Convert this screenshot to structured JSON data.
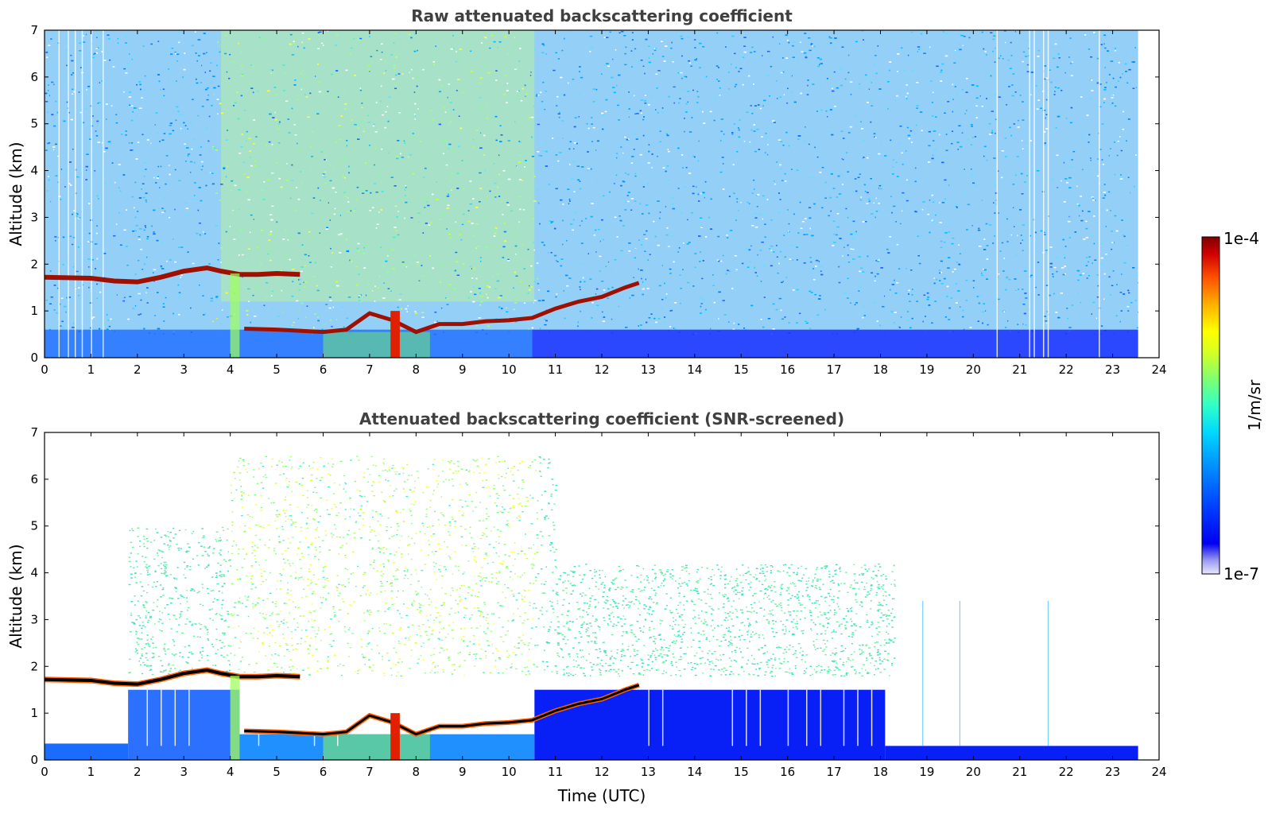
{
  "chart_data": [
    {
      "type": "heatmap",
      "title": "Raw attenuated backscattering coefficient",
      "xlabel": "",
      "ylabel": "Altitude (km)",
      "xlim": [
        0,
        24
      ],
      "ylim": [
        0,
        7
      ],
      "x_ticks": [
        "0",
        "1",
        "2",
        "3",
        "4",
        "5",
        "6",
        "7",
        "8",
        "9",
        "10",
        "11",
        "12",
        "13",
        "14",
        "15",
        "16",
        "17",
        "18",
        "19",
        "20",
        "21",
        "22",
        "23",
        "24"
      ],
      "y_ticks": [
        "0",
        "1",
        "2",
        "3",
        "4",
        "5",
        "6",
        "7"
      ],
      "data_end_time": 23.55,
      "cloud_layer": [
        [
          0,
          1.72
        ],
        [
          1,
          1.7
        ],
        [
          1.5,
          1.64
        ],
        [
          2,
          1.62
        ],
        [
          2.5,
          1.72
        ],
        [
          3,
          1.85
        ],
        [
          3.5,
          1.92
        ],
        [
          3.8,
          1.85
        ],
        [
          4.2,
          1.78
        ],
        [
          4.6,
          1.78
        ],
        [
          5.0,
          1.8
        ],
        [
          5.5,
          1.78
        ]
      ],
      "boundary_layer_top": [
        [
          4.3,
          0.62
        ],
        [
          5,
          0.6
        ],
        [
          6,
          0.55
        ],
        [
          6.5,
          0.6
        ],
        [
          7,
          0.95
        ],
        [
          7.5,
          0.8
        ],
        [
          8,
          0.55
        ],
        [
          8.5,
          0.72
        ],
        [
          9,
          0.72
        ],
        [
          9.5,
          0.78
        ],
        [
          10,
          0.8
        ],
        [
          10.5,
          0.85
        ],
        [
          11,
          1.05
        ],
        [
          11.5,
          1.2
        ],
        [
          12,
          1.3
        ],
        [
          12.5,
          1.5
        ],
        [
          12.8,
          1.6
        ]
      ],
      "color_scale": {
        "min": "1e-7",
        "max": "1e-4",
        "unit": "1/m/sr"
      }
    },
    {
      "type": "heatmap",
      "title": "Attenuated backscattering coefficient (SNR-screened)",
      "xlabel": "Time (UTC)",
      "ylabel": "Altitude (km)",
      "xlim": [
        0,
        24
      ],
      "ylim": [
        0,
        7
      ],
      "x_ticks": [
        "0",
        "1",
        "2",
        "3",
        "4",
        "5",
        "6",
        "7",
        "8",
        "9",
        "10",
        "11",
        "12",
        "13",
        "14",
        "15",
        "16",
        "17",
        "18",
        "19",
        "20",
        "21",
        "22",
        "23",
        "24"
      ],
      "y_ticks": [
        "0",
        "1",
        "2",
        "3",
        "4",
        "5",
        "6",
        "7"
      ],
      "data_end_time": 23.55,
      "color_scale": {
        "min": "1e-7",
        "max": "1e-4",
        "unit": "1/m/sr"
      }
    }
  ],
  "colorbar": {
    "max_label": "1e-4",
    "min_label": "1e-7",
    "unit_label": "1/m/sr",
    "colors": [
      "#ffffff",
      "#c8c8f5",
      "#9a9af0",
      "#5a5ae8",
      "#0000f0",
      "#0018ff",
      "#0050ff",
      "#0090ff",
      "#00c8ff",
      "#10f0e8",
      "#40ffb0",
      "#80ff70",
      "#c0ff30",
      "#ffff00",
      "#ffd000",
      "#ffa000",
      "#ff6000",
      "#ff2000",
      "#e00000",
      "#a00000",
      "#800000"
    ]
  }
}
